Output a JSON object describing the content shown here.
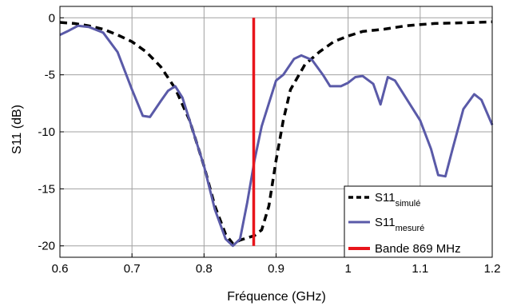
{
  "chart_data": {
    "type": "line",
    "title": "",
    "xlabel": "Fréquence (GHz)",
    "ylabel": "S11 (dB)",
    "xlim": [
      0.6,
      1.2
    ],
    "ylim": [
      -21,
      1
    ],
    "grid": true,
    "legend_position": "bottom-right",
    "x_ticks": [
      0.6,
      0.7,
      0.8,
      0.9,
      1,
      1.1,
      1.2
    ],
    "x_tick_labels": [
      "0.6",
      "0.7",
      "0.8",
      "0.9",
      "1",
      "1.1",
      "1.2"
    ],
    "y_ticks": [
      0,
      -5,
      -10,
      -15,
      -20
    ],
    "y_tick_labels": [
      "0",
      "-5",
      "-10",
      "-15",
      "-20"
    ],
    "series": [
      {
        "name": "S11",
        "name_sub": "simulé",
        "color": "#000000",
        "dash": true,
        "points": [
          [
            0.6,
            -0.4
          ],
          [
            0.62,
            -0.5
          ],
          [
            0.64,
            -0.7
          ],
          [
            0.66,
            -1.0
          ],
          [
            0.68,
            -1.5
          ],
          [
            0.7,
            -2.1
          ],
          [
            0.72,
            -3.0
          ],
          [
            0.74,
            -4.3
          ],
          [
            0.76,
            -6.2
          ],
          [
            0.78,
            -9.0
          ],
          [
            0.8,
            -13.0
          ],
          [
            0.815,
            -16.5
          ],
          [
            0.83,
            -19.0
          ],
          [
            0.84,
            -19.8
          ],
          [
            0.85,
            -19.5
          ],
          [
            0.86,
            -19.3
          ],
          [
            0.87,
            -19.1
          ],
          [
            0.88,
            -18.6
          ],
          [
            0.89,
            -16.5
          ],
          [
            0.9,
            -12.5
          ],
          [
            0.91,
            -9.0
          ],
          [
            0.92,
            -6.3
          ],
          [
            0.94,
            -4.1
          ],
          [
            0.96,
            -3.0
          ],
          [
            0.98,
            -2.1
          ],
          [
            1.0,
            -1.6
          ],
          [
            1.02,
            -1.2
          ],
          [
            1.05,
            -1.0
          ],
          [
            1.08,
            -0.7
          ],
          [
            1.1,
            -0.6
          ],
          [
            1.12,
            -0.5
          ],
          [
            1.15,
            -0.45
          ],
          [
            1.18,
            -0.4
          ],
          [
            1.2,
            -0.35
          ]
        ]
      },
      {
        "name": "S11",
        "name_sub": "mesuré",
        "color": "#5a5aa8",
        "dash": false,
        "points": [
          [
            0.6,
            -1.5
          ],
          [
            0.61,
            -1.2
          ],
          [
            0.625,
            -0.7
          ],
          [
            0.64,
            -0.8
          ],
          [
            0.66,
            -1.3
          ],
          [
            0.68,
            -3.0
          ],
          [
            0.7,
            -6.3
          ],
          [
            0.715,
            -8.6
          ],
          [
            0.725,
            -8.7
          ],
          [
            0.74,
            -7.3
          ],
          [
            0.75,
            -6.4
          ],
          [
            0.76,
            -6.0
          ],
          [
            0.77,
            -7.0
          ],
          [
            0.78,
            -9.0
          ],
          [
            0.8,
            -13.0
          ],
          [
            0.815,
            -16.8
          ],
          [
            0.83,
            -19.4
          ],
          [
            0.84,
            -20.0
          ],
          [
            0.85,
            -19.4
          ],
          [
            0.86,
            -16.2
          ],
          [
            0.87,
            -12.5
          ],
          [
            0.88,
            -9.5
          ],
          [
            0.89,
            -7.5
          ],
          [
            0.9,
            -5.5
          ],
          [
            0.91,
            -5.0
          ],
          [
            0.925,
            -3.6
          ],
          [
            0.935,
            -3.3
          ],
          [
            0.95,
            -3.7
          ],
          [
            0.965,
            -5.0
          ],
          [
            0.975,
            -6.0
          ],
          [
            0.99,
            -6.0
          ],
          [
            1.0,
            -5.7
          ],
          [
            1.01,
            -5.2
          ],
          [
            1.02,
            -5.1
          ],
          [
            1.035,
            -5.8
          ],
          [
            1.045,
            -7.6
          ],
          [
            1.055,
            -5.2
          ],
          [
            1.065,
            -5.5
          ],
          [
            1.08,
            -7.0
          ],
          [
            1.1,
            -9.0
          ],
          [
            1.115,
            -11.5
          ],
          [
            1.125,
            -13.8
          ],
          [
            1.135,
            -13.9
          ],
          [
            1.145,
            -11.5
          ],
          [
            1.16,
            -8.0
          ],
          [
            1.175,
            -6.7
          ],
          [
            1.185,
            -7.2
          ],
          [
            1.2,
            -9.4
          ]
        ]
      },
      {
        "name": "Bande 869 MHz",
        "color": "#e8151b",
        "dash": false,
        "points": [
          [
            0.869,
            0.0
          ],
          [
            0.869,
            -20.0
          ]
        ]
      }
    ]
  }
}
